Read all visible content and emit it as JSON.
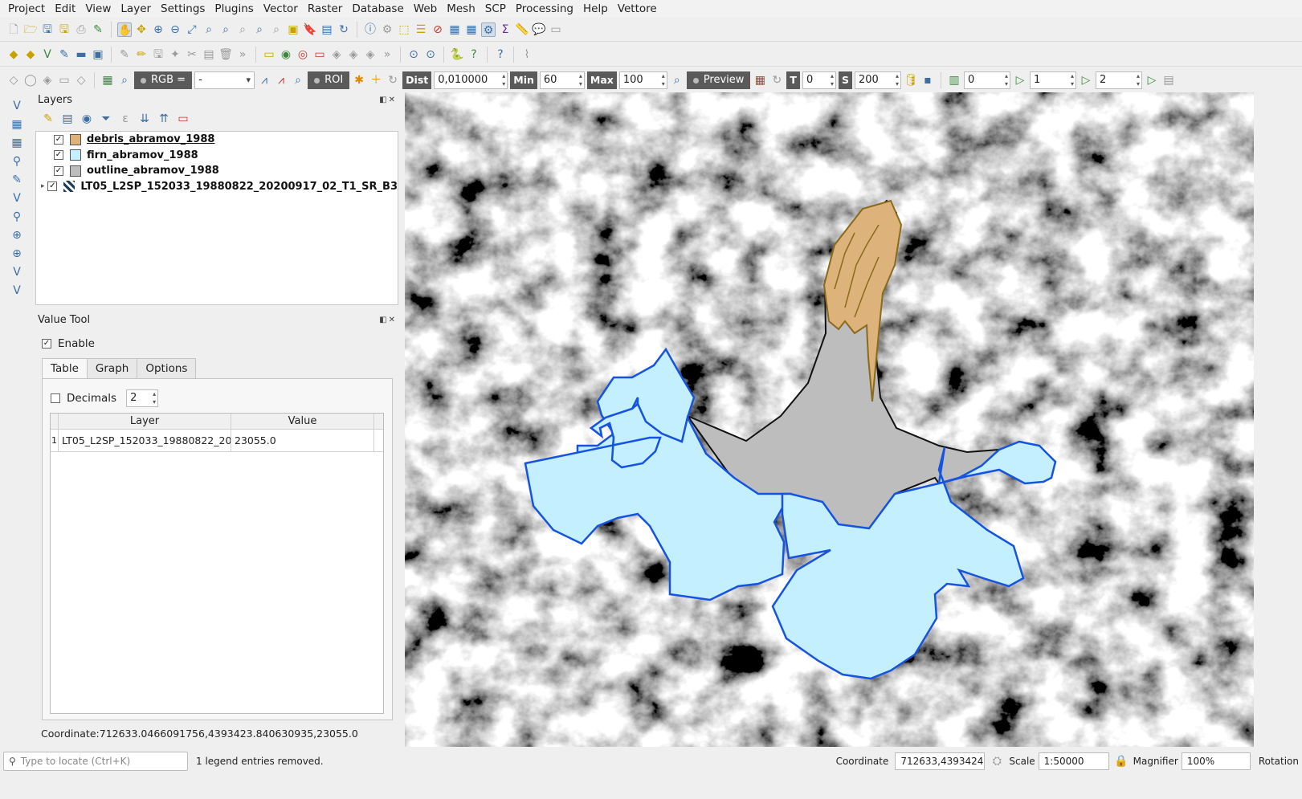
{
  "menu": [
    "Project",
    "Edit",
    "View",
    "Layer",
    "Settings",
    "Plugins",
    "Vector",
    "Raster",
    "Database",
    "Web",
    "Mesh",
    "SCP",
    "Processing",
    "Help",
    "Vettore"
  ],
  "scp_toolbar": {
    "rgb_label": "RGB =",
    "rgb_value": "-",
    "roi_label": "ROI",
    "dist_label": "Dist",
    "dist_value": "0,010000",
    "min_label": "Min",
    "min_value": "60",
    "max_label": "Max",
    "max_value": "100",
    "preview_label": "Preview",
    "t_label": "T",
    "t_value": "0",
    "s_label": "S",
    "s_value": "200",
    "band_r_value": "0",
    "band_g_value": "1",
    "band_b_value": "2"
  },
  "layers_panel": {
    "title": "Layers",
    "layers": [
      {
        "name": "debris_abramov_1988",
        "checked": true,
        "swatch": "#ddb27b",
        "type": "polygon"
      },
      {
        "name": "firn_abramov_1988",
        "checked": true,
        "swatch": "#c4efff",
        "type": "polygon"
      },
      {
        "name": "outline_abramov_1988",
        "checked": true,
        "swatch": "#bdbdbd",
        "type": "polygon"
      },
      {
        "name": "LT05_L2SP_152033_19880822_20200917_02_T1_SR_B3",
        "checked": true,
        "type": "raster"
      }
    ]
  },
  "value_tool": {
    "title": "Value Tool",
    "enable_label": "Enable",
    "enabled": true,
    "tabs": [
      "Table",
      "Graph",
      "Options"
    ],
    "active_tab": "Table",
    "decimals_label": "Decimals",
    "decimals_checked": false,
    "decimals_value": "2",
    "columns": [
      "Layer",
      "Value"
    ],
    "rows": [
      {
        "index": "1",
        "layer": "LT05_L2SP_152033_19880822_20...",
        "value": "23055.0"
      }
    ],
    "coordinate_text": "Coordinate:712633.0466091756,4393423.840630935,23055.0"
  },
  "statusbar": {
    "locate_placeholder": "Type to locate (Ctrl+K)",
    "message": "1 legend entries removed.",
    "coordinate_label": "Coordinate",
    "coordinate_value": "712633,4393424",
    "scale_label": "Scale",
    "scale_value": "1:50000",
    "magnifier_label": "Magnifier",
    "magnifier_value": "100%",
    "rotation_label": "Rotation"
  },
  "colors": {
    "debris_fill": "#ddb27b",
    "debris_stroke": "#8a6a1c",
    "firn_fill": "#c4efff",
    "firn_stroke": "#1553e0",
    "outline_fill": "#bdbdbd",
    "outline_stroke": "#111111"
  }
}
